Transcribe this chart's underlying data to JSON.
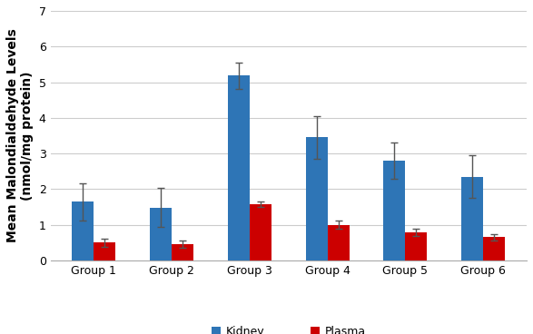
{
  "groups": [
    "Group 1",
    "Group 2",
    "Group 3",
    "Group 4",
    "Group 5",
    "Group 6"
  ],
  "kidney_values": [
    1.65,
    1.48,
    5.18,
    3.45,
    2.8,
    2.35
  ],
  "plasma_values": [
    0.5,
    0.45,
    1.58,
    1.0,
    0.78,
    0.65
  ],
  "kidney_errors": [
    0.52,
    0.55,
    0.38,
    0.6,
    0.5,
    0.6
  ],
  "plasma_errors": [
    0.12,
    0.1,
    0.08,
    0.12,
    0.1,
    0.08
  ],
  "kidney_color": "#2E75B6",
  "plasma_color": "#CC0000",
  "ylabel": "Mean Malondialdehyde Levels\n(nmol/mg protein)",
  "ylim": [
    0,
    7
  ],
  "yticks": [
    0,
    1,
    2,
    3,
    4,
    5,
    6,
    7
  ],
  "legend_labels": [
    "Kidney",
    "Plasma"
  ],
  "bar_width": 0.28,
  "background_color": "#ffffff",
  "grid_color": "#cccccc",
  "capsize": 3,
  "ylabel_fontsize": 10,
  "tick_fontsize": 9,
  "legend_fontsize": 9,
  "error_color": "#555555"
}
